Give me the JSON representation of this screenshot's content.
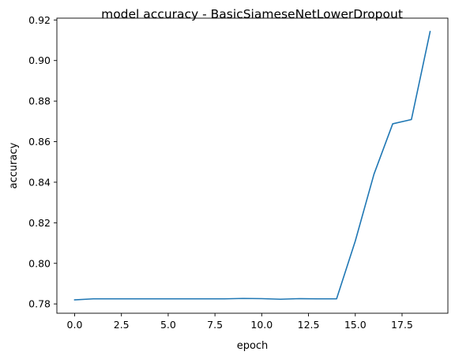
{
  "chart_data": {
    "type": "line",
    "title": "model accuracy - BasicSiameseNetLowerDropout",
    "xlabel": "epoch",
    "ylabel": "accuracy",
    "xlim": [
      -0.95,
      19.95
    ],
    "ylim": [
      0.7754,
      0.9209
    ],
    "grid": false,
    "x_ticks": [
      0.0,
      2.5,
      5.0,
      7.5,
      10.0,
      12.5,
      15.0,
      17.5
    ],
    "x_tick_labels": [
      "0.0",
      "2.5",
      "5.0",
      "7.5",
      "10.0",
      "12.5",
      "15.0",
      "17.5"
    ],
    "y_ticks": [
      0.78,
      0.8,
      0.82,
      0.84,
      0.86,
      0.88,
      0.9,
      0.92
    ],
    "y_tick_labels": [
      "0.78",
      "0.80",
      "0.82",
      "0.84",
      "0.86",
      "0.88",
      "0.90",
      "0.92"
    ],
    "series": [
      {
        "color": "#1f77b4",
        "x": [
          0,
          1,
          2,
          3,
          4,
          5,
          6,
          7,
          8,
          9,
          10,
          11,
          12,
          13,
          14,
          15,
          16,
          17,
          18,
          19
        ],
        "values": [
          0.782,
          0.7825,
          0.7825,
          0.7825,
          0.7825,
          0.7825,
          0.7825,
          0.7825,
          0.7825,
          0.7827,
          0.7826,
          0.7823,
          0.7826,
          0.7825,
          0.7825,
          0.811,
          0.844,
          0.8688,
          0.8709,
          0.9143
        ]
      }
    ]
  }
}
